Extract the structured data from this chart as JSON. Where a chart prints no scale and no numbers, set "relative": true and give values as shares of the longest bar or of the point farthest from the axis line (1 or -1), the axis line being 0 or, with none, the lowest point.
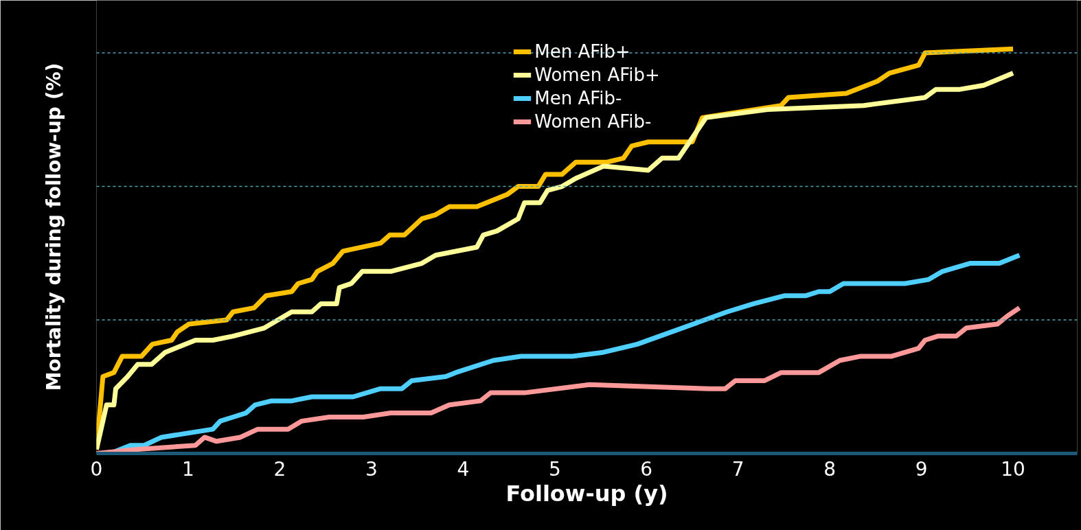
{
  "chart_data": {
    "type": "line",
    "relative": true,
    "xlabel": "Follow-up (y)",
    "ylabel": "Mortality during follow-up (%)",
    "xlim": [
      0,
      10.7
    ],
    "xticks": [
      0,
      1,
      2,
      3,
      4,
      5,
      6,
      7,
      8,
      9,
      10
    ],
    "legend": "top",
    "grid": false,
    "line_style": "solid",
    "marker": "none",
    "ref_lines": [
      {
        "axis": "y",
        "value": 0.33,
        "label": null,
        "color": "#4aa8b8",
        "line_style": "dashed"
      },
      {
        "axis": "y",
        "value": 0.66,
        "label": null,
        "color": "#4aa8b8",
        "line_style": "dashed"
      },
      {
        "axis": "y",
        "value": 0.99,
        "label": null,
        "color": "#4aa8b8",
        "line_style": "dashed"
      }
    ],
    "series": [
      {
        "name": "Men AFib+",
        "color": "#ffc000",
        "x": [
          0,
          0.07,
          0.19,
          0.28,
          0.49,
          0.61,
          0.82,
          0.88,
          1.01,
          1.42,
          1.49,
          1.72,
          1.85,
          2.13,
          2.2,
          2.35,
          2.41,
          2.58,
          2.69,
          3.1,
          3.2,
          3.36,
          3.55,
          3.7,
          3.85,
          4.15,
          4.48,
          4.6,
          4.82,
          4.9,
          5.08,
          5.23,
          5.57,
          5.75,
          5.84,
          6.02,
          6.5,
          6.61,
          7.47,
          7.55,
          8.18,
          8.52,
          8.65,
          8.97,
          9.04,
          10
        ],
        "values": [
          0.01,
          0.19,
          0.2,
          0.24,
          0.24,
          0.27,
          0.28,
          0.3,
          0.32,
          0.33,
          0.35,
          0.36,
          0.39,
          0.4,
          0.42,
          0.43,
          0.45,
          0.47,
          0.5,
          0.52,
          0.54,
          0.54,
          0.58,
          0.59,
          0.61,
          0.61,
          0.64,
          0.66,
          0.66,
          0.69,
          0.69,
          0.72,
          0.72,
          0.73,
          0.76,
          0.77,
          0.77,
          0.83,
          0.86,
          0.88,
          0.89,
          0.92,
          0.94,
          0.96,
          0.99,
          1
        ]
      },
      {
        "name": "Women AFib+",
        "color": "#ffff99",
        "x": [
          0,
          0.11,
          0.19,
          0.21,
          0.34,
          0.45,
          0.6,
          0.75,
          1.08,
          1.27,
          1.49,
          1.83,
          2.13,
          2.35,
          2.45,
          2.62,
          2.65,
          2.78,
          2.9,
          3.21,
          3.55,
          3.7,
          4.15,
          4.22,
          4.37,
          4.6,
          4.67,
          4.84,
          4.92,
          5.08,
          5.23,
          5.53,
          6.02,
          6.17,
          6.35,
          6.5,
          6.65,
          7.32,
          8.37,
          9.04,
          9.16,
          9.42,
          9.68,
          10
        ],
        "values": [
          0.01,
          0.12,
          0.12,
          0.16,
          0.19,
          0.22,
          0.22,
          0.25,
          0.28,
          0.28,
          0.29,
          0.31,
          0.35,
          0.35,
          0.37,
          0.37,
          0.41,
          0.42,
          0.45,
          0.45,
          0.47,
          0.49,
          0.51,
          0.54,
          0.55,
          0.58,
          0.62,
          0.62,
          0.65,
          0.66,
          0.68,
          0.71,
          0.7,
          0.73,
          0.73,
          0.78,
          0.83,
          0.85,
          0.86,
          0.88,
          0.9,
          0.9,
          0.91,
          0.94
        ]
      },
      {
        "name": "Men AFib-",
        "color": "#4fcfff",
        "x": [
          0.15,
          0.37,
          0.52,
          0.71,
          1.27,
          1.35,
          1.49,
          1.63,
          1.73,
          1.91,
          2.13,
          2.35,
          2.62,
          2.8,
          3.1,
          3.33,
          3.44,
          3.81,
          3.92,
          4.33,
          4.63,
          5.19,
          5.53,
          5.9,
          6.88,
          7.17,
          7.51,
          7.74,
          7.88,
          8.0,
          8.15,
          8.82,
          9.08,
          9.23,
          9.53,
          9.85,
          10.07
        ],
        "values": [
          0,
          0.02,
          0.02,
          0.04,
          0.06,
          0.08,
          0.09,
          0.1,
          0.12,
          0.13,
          0.13,
          0.14,
          0.14,
          0.14,
          0.16,
          0.16,
          0.18,
          0.19,
          0.2,
          0.23,
          0.24,
          0.24,
          0.25,
          0.27,
          0.35,
          0.37,
          0.39,
          0.39,
          0.4,
          0.4,
          0.42,
          0.42,
          0.43,
          0.45,
          0.47,
          0.47,
          0.49
        ]
      },
      {
        "name": "Women AFib-",
        "color": "#ff9999",
        "x": [
          0,
          0.45,
          1.08,
          1.18,
          1.31,
          1.57,
          1.76,
          2.09,
          2.24,
          2.54,
          2.91,
          3.21,
          3.65,
          3.85,
          4.19,
          4.3,
          4.67,
          5.38,
          6.69,
          6.86,
          6.97,
          7.29,
          7.47,
          7.88,
          8.11,
          8.33,
          8.67,
          8.97,
          9.04,
          9.18,
          9.38,
          9.49,
          9.83,
          9.94,
          10.07
        ],
        "values": [
          0,
          0.01,
          0.02,
          0.04,
          0.03,
          0.04,
          0.06,
          0.06,
          0.08,
          0.09,
          0.09,
          0.1,
          0.1,
          0.12,
          0.13,
          0.15,
          0.15,
          0.17,
          0.16,
          0.16,
          0.18,
          0.18,
          0.2,
          0.2,
          0.23,
          0.24,
          0.24,
          0.26,
          0.28,
          0.29,
          0.29,
          0.31,
          0.32,
          0.34,
          0.36
        ]
      }
    ]
  }
}
